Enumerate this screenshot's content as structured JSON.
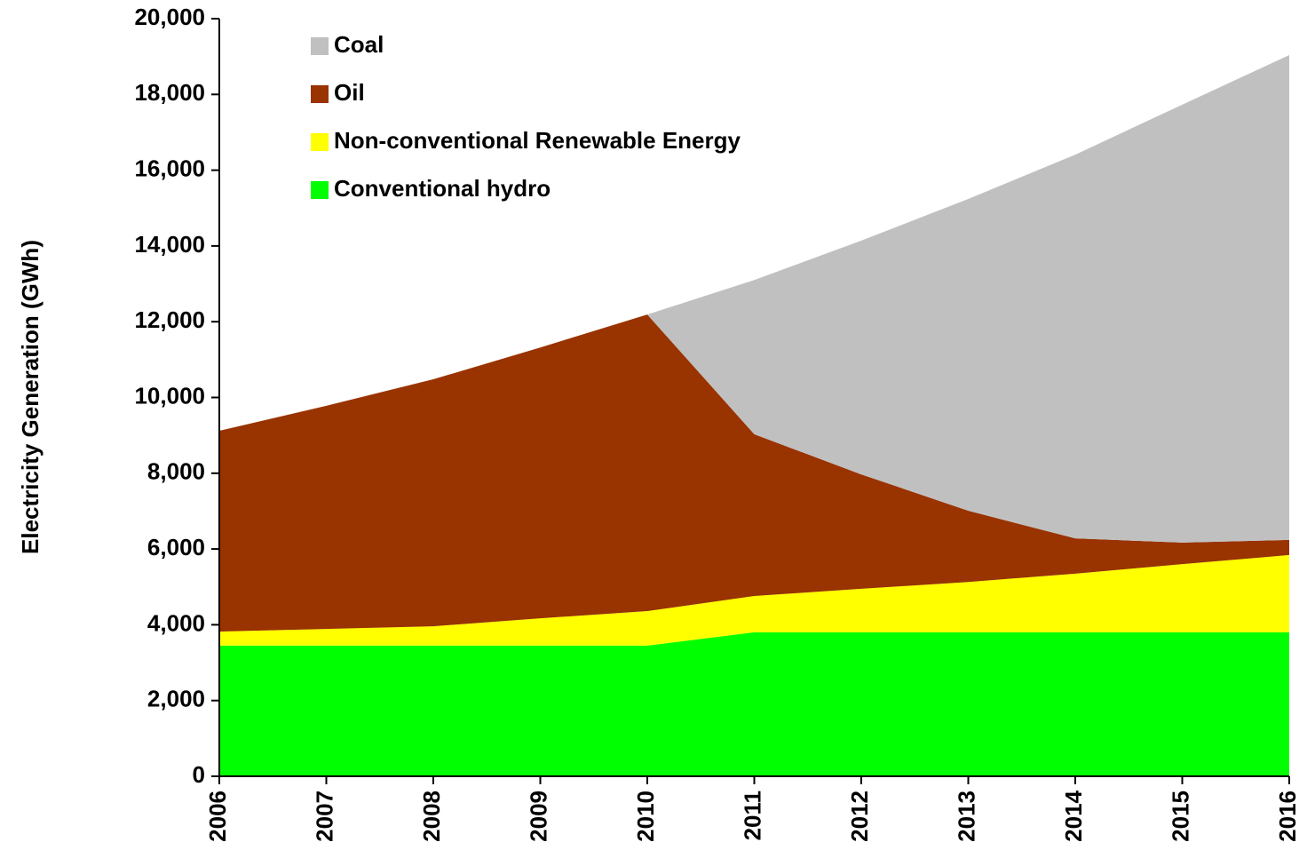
{
  "chart_data": {
    "type": "stacked_area",
    "y_label": "Electricity Generation (GWh)",
    "categories": [
      "2006",
      "2007",
      "2008",
      "2009",
      "2010",
      "2011",
      "2012",
      "2013",
      "2014",
      "2015",
      "2016"
    ],
    "series": [
      {
        "name": "Conventional hydro",
        "color": "#00ff00",
        "values": [
          3450,
          3450,
          3450,
          3450,
          3450,
          3800,
          3800,
          3800,
          3800,
          3800,
          3800
        ]
      },
      {
        "name": "Non-conventional Renewable Energy",
        "color": "#ffff00",
        "values": [
          370,
          440,
          510,
          720,
          910,
          960,
          1150,
          1330,
          1550,
          1800,
          2040
        ]
      },
      {
        "name": "Oil",
        "color": "#993300",
        "values": [
          5300,
          5890,
          6520,
          7150,
          7830,
          4270,
          3020,
          1880,
          930,
          570,
          400
        ]
      },
      {
        "name": "Coal",
        "color": "#c0c0c0",
        "values": [
          0,
          0,
          0,
          0,
          0,
          4070,
          6170,
          8230,
          10130,
          11560,
          12800
        ]
      }
    ],
    "ylim": [
      0,
      20000
    ],
    "yticks": [
      0,
      {
        "value": 2000,
        "label": "2,000"
      },
      {
        "value": 4000,
        "label": "4,000"
      },
      {
        "value": 6000,
        "label": "6,000"
      },
      {
        "value": 8000,
        "label": "8,000"
      },
      {
        "value": 10000,
        "label": "10,000"
      },
      {
        "value": 12000,
        "label": "12,000"
      },
      {
        "value": 14000,
        "label": "14,000"
      },
      {
        "value": 16000,
        "label": "16,000"
      },
      {
        "value": 18000,
        "label": "18,000"
      },
      {
        "value": 20000,
        "label": "20,000"
      }
    ],
    "legend": "upper left"
  }
}
